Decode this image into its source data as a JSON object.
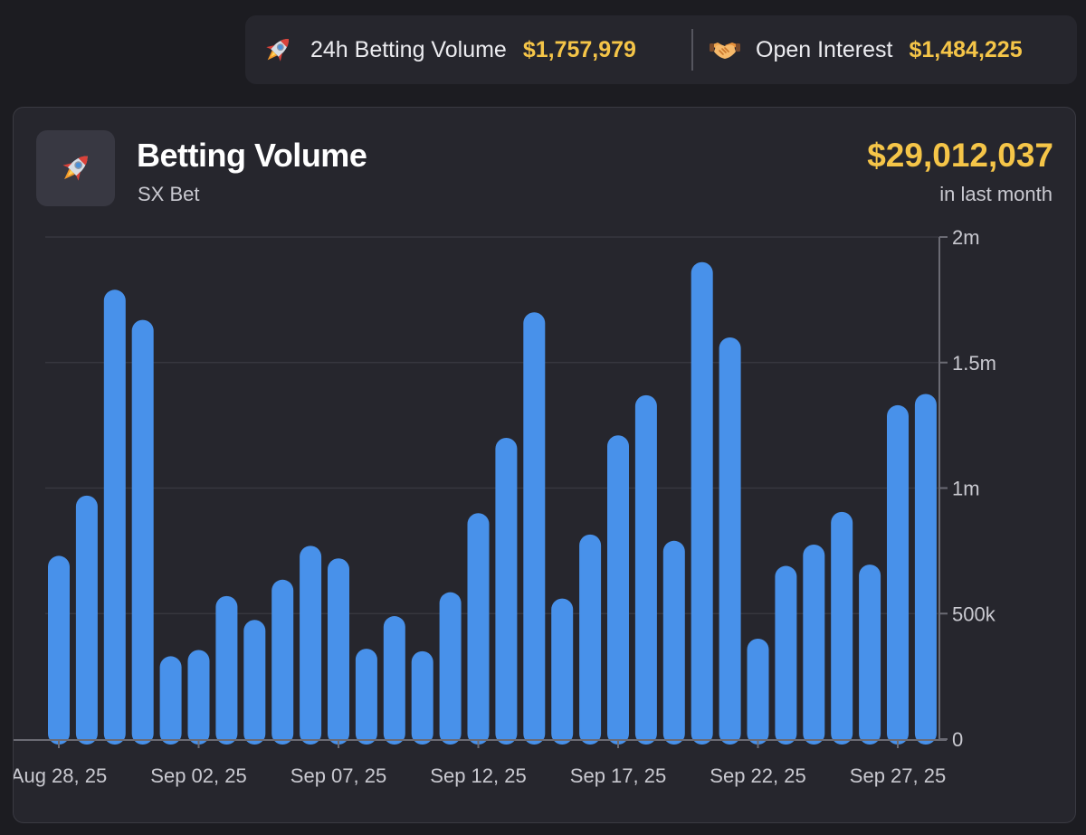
{
  "stats": {
    "volume": {
      "icon": "rocket-icon",
      "label": "24h Betting Volume",
      "value": "$1,757,979"
    },
    "open_interest": {
      "icon": "handshake-icon",
      "label": "Open Interest",
      "value": "$1,484,225"
    }
  },
  "card": {
    "icon": "rocket-icon",
    "title": "Betting Volume",
    "subtitle": "SX Bet",
    "total": "$29,012,037",
    "total_caption": "in last month"
  },
  "colors": {
    "bar": "#4891ea",
    "accent": "#f5c548",
    "grid": "#3a3a42",
    "axis": "#6b6b74"
  },
  "chart_data": {
    "type": "bar",
    "title": "",
    "xlabel": "",
    "ylabel": "",
    "ylim": [
      0,
      2000000
    ],
    "y_ticks": [
      {
        "value": 0,
        "label": "0"
      },
      {
        "value": 500000,
        "label": "500k"
      },
      {
        "value": 1000000,
        "label": "1m"
      },
      {
        "value": 1500000,
        "label": "1.5m"
      },
      {
        "value": 2000000,
        "label": "2m"
      }
    ],
    "x_ticks": [
      {
        "index": 0,
        "label": "Aug 28, 25"
      },
      {
        "index": 5,
        "label": "Sep 02, 25"
      },
      {
        "index": 10,
        "label": "Sep 07, 25"
      },
      {
        "index": 15,
        "label": "Sep 12, 25"
      },
      {
        "index": 20,
        "label": "Sep 17, 25"
      },
      {
        "index": 25,
        "label": "Sep 22, 25"
      },
      {
        "index": 30,
        "label": "Sep 27, 25"
      }
    ],
    "categories": [
      "Aug 28, 25",
      "Aug 29, 25",
      "Aug 30, 25",
      "Aug 31, 25",
      "Sep 01, 25",
      "Sep 02, 25",
      "Sep 03, 25",
      "Sep 04, 25",
      "Sep 05, 25",
      "Sep 06, 25",
      "Sep 07, 25",
      "Sep 08, 25",
      "Sep 09, 25",
      "Sep 10, 25",
      "Sep 11, 25",
      "Sep 12, 25",
      "Sep 13, 25",
      "Sep 14, 25",
      "Sep 15, 25",
      "Sep 16, 25",
      "Sep 17, 25",
      "Sep 18, 25",
      "Sep 19, 25",
      "Sep 20, 25",
      "Sep 21, 25",
      "Sep 22, 25",
      "Sep 23, 25",
      "Sep 24, 25",
      "Sep 25, 25",
      "Sep 26, 25",
      "Sep 27, 25",
      "Sep 28, 25"
    ],
    "values": [
      730000,
      970000,
      1790000,
      1670000,
      330000,
      355000,
      570000,
      475000,
      635000,
      770000,
      720000,
      360000,
      490000,
      350000,
      585000,
      900000,
      1200000,
      1700000,
      560000,
      815000,
      1210000,
      1370000,
      790000,
      1900000,
      1600000,
      400000,
      690000,
      775000,
      905000,
      695000,
      1330000,
      1375000
    ]
  }
}
